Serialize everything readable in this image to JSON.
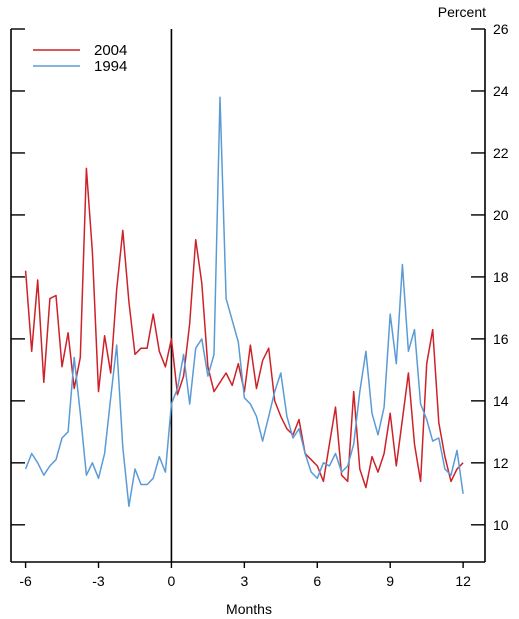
{
  "chart_data": {
    "type": "line",
    "title": "",
    "xlabel": "Months",
    "ylabel": "Percent",
    "xlim": [
      -6.6,
      12.9
    ],
    "ylim": [
      8.8,
      26
    ],
    "x_ticks": [
      -6,
      -3,
      0,
      3,
      6,
      9,
      12
    ],
    "x_tick_labels": [
      "-6",
      "-3",
      "0",
      "3",
      "6",
      "9",
      "12"
    ],
    "y_ticks": [
      10,
      12,
      14,
      16,
      18,
      20,
      22,
      24,
      26
    ],
    "y_tick_labels": [
      "10",
      "12",
      "14",
      "16",
      "18",
      "20",
      "22",
      "24",
      "26"
    ],
    "vertical_reference_line_x": 0,
    "legend_position": "top-left",
    "grid": false,
    "series": [
      {
        "name": "2004",
        "color": "#cc2229",
        "x": [
          -6,
          -5.75,
          -5.5,
          -5.25,
          -5,
          -4.75,
          -4.5,
          -4.25,
          -4,
          -3.75,
          -3.5,
          -3.25,
          -3,
          -2.75,
          -2.5,
          -2.25,
          -2,
          -1.75,
          -1.5,
          -1.25,
          -1,
          -0.75,
          -0.5,
          -0.25,
          0,
          0.25,
          0.5,
          0.75,
          1,
          1.25,
          1.5,
          1.75,
          2,
          2.25,
          2.5,
          2.75,
          3,
          3.25,
          3.5,
          3.75,
          4,
          4.25,
          4.5,
          4.75,
          5,
          5.25,
          5.5,
          5.75,
          6,
          6.25,
          6.5,
          6.75,
          7,
          7.25,
          7.5,
          7.75,
          8,
          8.25,
          8.5,
          8.75,
          9,
          9.25,
          9.5,
          9.75,
          10,
          10.25,
          10.5,
          10.75,
          11,
          11.25,
          11.5,
          11.75,
          12
        ],
        "y": [
          18.2,
          15.6,
          17.9,
          14.6,
          17.3,
          17.4,
          15.1,
          16.2,
          14.4,
          15.4,
          21.5,
          18.8,
          14.3,
          16.1,
          14.9,
          17.6,
          19.5,
          17.2,
          15.5,
          15.7,
          15.7,
          16.8,
          15.6,
          15.1,
          16.0,
          14.2,
          14.8,
          16.5,
          19.2,
          17.8,
          15.1,
          14.3,
          14.6,
          14.9,
          14.5,
          15.2,
          14.3,
          15.8,
          14.4,
          15.3,
          15.7,
          14.0,
          13.5,
          13.1,
          12.9,
          13.4,
          12.3,
          12.1,
          11.9,
          11.4,
          12.6,
          13.8,
          11.6,
          11.4,
          14.3,
          11.8,
          11.2,
          12.2,
          11.7,
          12.3,
          13.6,
          11.9,
          13.4,
          14.9,
          12.6,
          11.4,
          15.2,
          16.3,
          13.3,
          12.2,
          11.4,
          11.8,
          12.0
        ]
      },
      {
        "name": "1994",
        "color": "#5b9bd5",
        "x": [
          -6,
          -5.75,
          -5.5,
          -5.25,
          -5,
          -4.75,
          -4.5,
          -4.25,
          -4,
          -3.75,
          -3.5,
          -3.25,
          -3,
          -2.75,
          -2.5,
          -2.25,
          -2,
          -1.75,
          -1.5,
          -1.25,
          -1,
          -0.75,
          -0.5,
          -0.25,
          0,
          0.25,
          0.5,
          0.75,
          1,
          1.25,
          1.5,
          1.75,
          2,
          2.25,
          2.5,
          2.75,
          3,
          3.25,
          3.5,
          3.75,
          4,
          4.25,
          4.5,
          4.75,
          5,
          5.25,
          5.5,
          5.75,
          6,
          6.25,
          6.5,
          6.75,
          7,
          7.25,
          7.5,
          7.75,
          8,
          8.25,
          8.5,
          8.75,
          9,
          9.25,
          9.5,
          9.75,
          10,
          10.25,
          10.5,
          10.75,
          11,
          11.25,
          11.5,
          11.75,
          12
        ],
        "y": [
          11.8,
          12.3,
          12.0,
          11.6,
          11.9,
          12.1,
          12.8,
          13.0,
          15.4,
          13.6,
          11.6,
          12.0,
          11.5,
          12.3,
          14.1,
          15.8,
          12.5,
          10.6,
          11.8,
          11.3,
          11.3,
          11.5,
          12.2,
          11.7,
          13.9,
          14.4,
          15.5,
          13.9,
          15.7,
          16.0,
          14.8,
          15.5,
          23.8,
          17.3,
          16.6,
          15.9,
          14.1,
          13.9,
          13.5,
          12.7,
          13.5,
          14.3,
          14.9,
          13.5,
          12.8,
          13.1,
          12.3,
          11.7,
          11.5,
          12.0,
          11.9,
          12.3,
          11.7,
          11.9,
          12.6,
          14.3,
          15.6,
          13.6,
          12.9,
          13.8,
          16.8,
          15.2,
          18.4,
          15.6,
          16.3,
          13.9,
          13.4,
          12.7,
          12.8,
          11.8,
          11.6,
          12.4,
          11.0
        ]
      }
    ]
  }
}
